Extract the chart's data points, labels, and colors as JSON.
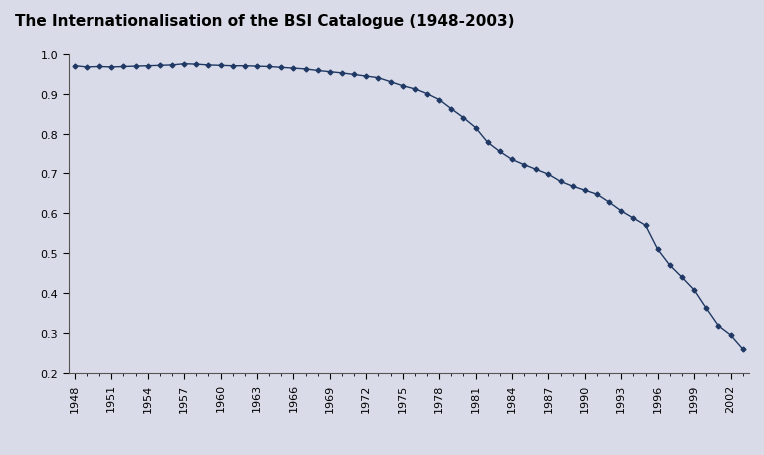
{
  "title": "The Internationalisation of the BSI Catalogue (1948-2003)",
  "title_fontsize": 11,
  "title_fontweight": "bold",
  "line_color": "#1F3864",
  "marker": "D",
  "marker_size": 2.5,
  "background_color": "#D9DCE8",
  "outer_background": "#D9DCE8",
  "ylim": [
    0.2,
    1.0
  ],
  "yticks": [
    0.2,
    0.3,
    0.4,
    0.5,
    0.6,
    0.7,
    0.8,
    0.9,
    1.0
  ],
  "years": [
    1948,
    1949,
    1950,
    1951,
    1952,
    1953,
    1954,
    1955,
    1956,
    1957,
    1958,
    1959,
    1960,
    1961,
    1962,
    1963,
    1964,
    1965,
    1966,
    1967,
    1968,
    1969,
    1970,
    1971,
    1972,
    1973,
    1974,
    1975,
    1976,
    1977,
    1978,
    1979,
    1980,
    1981,
    1982,
    1983,
    1984,
    1985,
    1986,
    1987,
    1988,
    1989,
    1990,
    1991,
    1992,
    1993,
    1994,
    1995,
    1996,
    1997,
    1998,
    1999,
    2000,
    2001,
    2002,
    2003
  ],
  "values": [
    0.97,
    0.967,
    0.968,
    0.967,
    0.968,
    0.969,
    0.97,
    0.971,
    0.972,
    0.975,
    0.974,
    0.972,
    0.971,
    0.97,
    0.97,
    0.969,
    0.968,
    0.966,
    0.964,
    0.962,
    0.958,
    0.955,
    0.952,
    0.948,
    0.944,
    0.94,
    0.93,
    0.92,
    0.912,
    0.9,
    0.885,
    0.862,
    0.84,
    0.815,
    0.778,
    0.755,
    0.735,
    0.722,
    0.71,
    0.698,
    0.68,
    0.668,
    0.658,
    0.648,
    0.628,
    0.606,
    0.588,
    0.57,
    0.51,
    0.47,
    0.44,
    0.408,
    0.362,
    0.318,
    0.295,
    0.26
  ],
  "xtick_labels": [
    "1948",
    "1951",
    "1954",
    "1957",
    "1960",
    "1963",
    "1966",
    "1969",
    "1972",
    "1975",
    "1978",
    "1981",
    "1984",
    "1987",
    "1990",
    "1993",
    "1996",
    "1999",
    "2002"
  ],
  "xtick_positions": [
    1948,
    1951,
    1954,
    1957,
    1960,
    1963,
    1966,
    1969,
    1972,
    1975,
    1978,
    1981,
    1984,
    1987,
    1990,
    1993,
    1996,
    1999,
    2002
  ]
}
